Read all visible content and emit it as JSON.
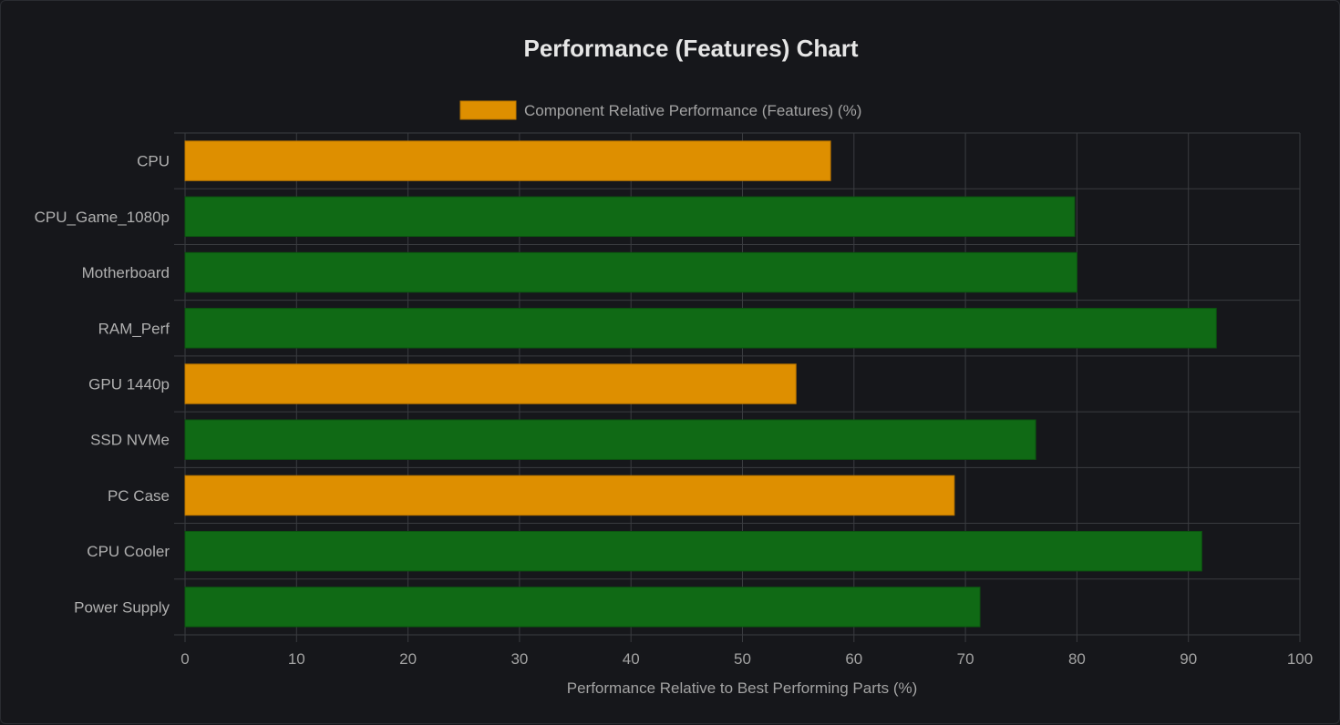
{
  "colors": {
    "background": "#16171b",
    "grid": "#3a3c40",
    "orange": "#de8f00",
    "orange_border": "#b87400",
    "green": "#106a15",
    "green_border": "#0c5410"
  },
  "chart_data": {
    "type": "bar",
    "orientation": "horizontal",
    "title": "Performance (Features) Chart",
    "xlabel": "Performance Relative to Best Performing Parts (%)",
    "ylabel": "",
    "xlim": [
      0,
      100
    ],
    "x_ticks": [
      0,
      10,
      20,
      30,
      40,
      50,
      60,
      70,
      80,
      90,
      100
    ],
    "grid": true,
    "legend": {
      "position": "top-center",
      "entries": [
        {
          "label": "Component Relative Performance (Features) (%)",
          "color": "#de8f00"
        }
      ]
    },
    "series": [
      {
        "name": "Component Relative Performance (Features) (%)",
        "values": [
          57.9,
          79.8,
          80.0,
          92.5,
          54.8,
          76.3,
          69.0,
          91.2,
          71.3
        ],
        "colors": [
          "#de8f00",
          "#106a15",
          "#106a15",
          "#106a15",
          "#de8f00",
          "#106a15",
          "#de8f00",
          "#106a15",
          "#106a15"
        ]
      }
    ],
    "categories": [
      "CPU",
      "CPU_Game_1080p",
      "Motherboard",
      "RAM_Perf",
      "GPU 1440p",
      "SSD NVMe",
      "PC Case",
      "CPU Cooler",
      "Power Supply"
    ]
  }
}
